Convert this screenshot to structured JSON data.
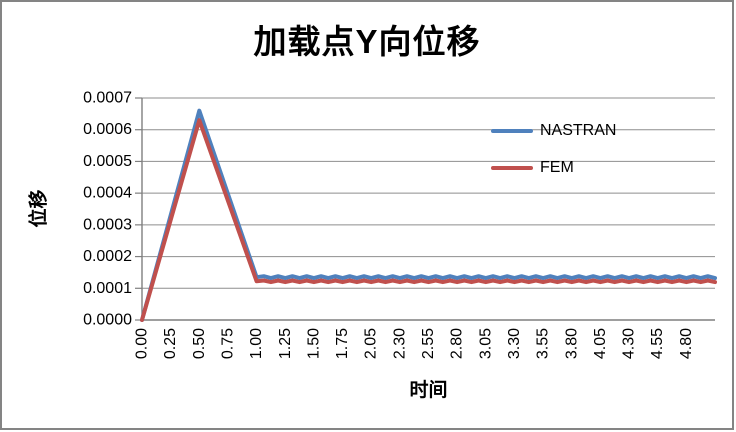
{
  "chart_data": {
    "type": "line",
    "title": "加载点Y向位移",
    "xlabel": "时间",
    "ylabel": "位移",
    "x_unit": "category_index (0..20 maps left axis to one step past the last label)",
    "x_tick_labels": [
      "0.00",
      "0.25",
      "0.50",
      "0.75",
      "1.00",
      "1.25",
      "1.50",
      "1.75",
      "2.05",
      "2.30",
      "2.55",
      "2.80",
      "3.05",
      "3.30",
      "3.55",
      "3.80",
      "4.05",
      "4.30",
      "4.55",
      "4.80"
    ],
    "y_tick_labels": [
      "0.0000",
      "0.0001",
      "0.0002",
      "0.0003",
      "0.0004",
      "0.0005",
      "0.0006",
      "0.0007"
    ],
    "ylim": [
      0,
      0.0007
    ],
    "y_tick_step": 0.0001,
    "grid": "horizontal only",
    "legend_position": "center-right, transparent background",
    "series": [
      {
        "name": "NASTRAN",
        "color": "#4F81BD",
        "peak": {
          "x_label": "0.50",
          "value": 0.00066
        },
        "steady_value": 0.000135,
        "shape_points": [
          [
            0,
            0
          ],
          [
            2,
            0.00066
          ],
          [
            4,
            0.000135
          ]
        ],
        "wave": {
          "from": 4,
          "to": 20,
          "step": 0.25,
          "base": 0.000135,
          "amp": 3e-06
        }
      },
      {
        "name": "FEM",
        "color": "#C0504D",
        "peak": {
          "x_label": "0.50",
          "value": 0.00063
        },
        "steady_value": 0.000122,
        "shape_points": [
          [
            0,
            0
          ],
          [
            2,
            0.00063
          ],
          [
            4,
            0.000122
          ]
        ],
        "wave": {
          "from": 4,
          "to": 20,
          "step": 0.25,
          "base": 0.000122,
          "amp": 2.5e-06
        }
      }
    ]
  },
  "colors": {
    "background": "#FFFFFF",
    "border": "#848484",
    "axis": "#7F7F7F",
    "gridline": "#8E8E8E",
    "text": "#000000"
  }
}
